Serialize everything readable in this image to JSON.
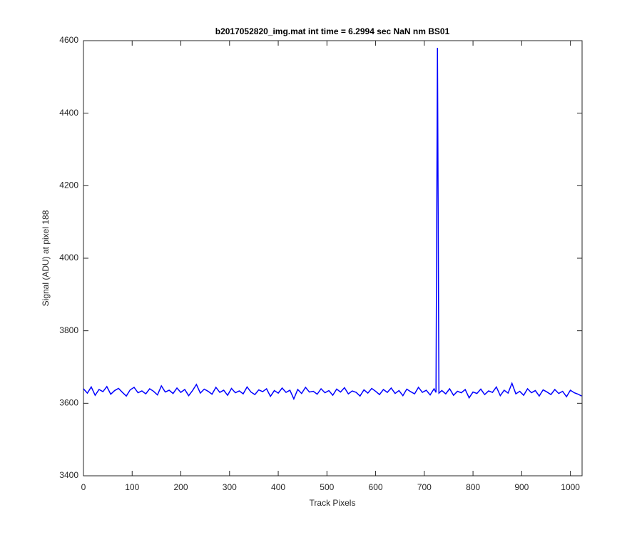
{
  "chart_data": {
    "type": "line",
    "title": "b2017052820_img.mat int time = 6.2994 sec  NaN nm BS01",
    "x_label": "Track Pixels",
    "y_label": "Signal (ADU) at pixel 188",
    "xlim": [
      0,
      1024
    ],
    "ylim": [
      3400,
      4600
    ],
    "xticks": [
      0,
      100,
      200,
      300,
      400,
      500,
      600,
      700,
      800,
      900,
      1000
    ],
    "yticks": [
      3400,
      3600,
      3800,
      4000,
      4200,
      4400,
      4600
    ],
    "grid": false,
    "x": [
      0,
      8,
      16,
      24,
      32,
      40,
      48,
      56,
      64,
      72,
      80,
      88,
      96,
      104,
      112,
      120,
      128,
      136,
      144,
      152,
      160,
      168,
      176,
      184,
      192,
      200,
      208,
      216,
      224,
      232,
      240,
      248,
      256,
      264,
      272,
      280,
      288,
      296,
      304,
      312,
      320,
      328,
      336,
      344,
      352,
      360,
      368,
      376,
      384,
      392,
      400,
      408,
      416,
      424,
      432,
      440,
      448,
      456,
      464,
      472,
      480,
      488,
      496,
      504,
      512,
      520,
      528,
      536,
      544,
      552,
      560,
      568,
      576,
      584,
      592,
      600,
      608,
      616,
      624,
      632,
      640,
      648,
      656,
      664,
      672,
      680,
      688,
      696,
      704,
      712,
      720,
      724,
      727,
      730,
      736,
      744,
      752,
      760,
      768,
      776,
      784,
      792,
      800,
      808,
      816,
      824,
      832,
      840,
      848,
      856,
      864,
      872,
      880,
      888,
      896,
      904,
      912,
      920,
      928,
      936,
      944,
      952,
      960,
      968,
      976,
      984,
      992,
      1000,
      1008,
      1016,
      1023
    ],
    "series": [
      {
        "color": "#0000ff",
        "values": [
          3640,
          3628,
          3645,
          3622,
          3638,
          3632,
          3646,
          3625,
          3635,
          3641,
          3630,
          3620,
          3637,
          3644,
          3629,
          3634,
          3626,
          3640,
          3633,
          3623,
          3648,
          3631,
          3636,
          3627,
          3642,
          3630,
          3638,
          3621,
          3635,
          3652,
          3628,
          3639,
          3633,
          3625,
          3644,
          3630,
          3636,
          3622,
          3641,
          3629,
          3634,
          3626,
          3645,
          3631,
          3624,
          3637,
          3632,
          3640,
          3619,
          3635,
          3628,
          3642,
          3630,
          3636,
          3612,
          3638,
          3627,
          3644,
          3631,
          3633,
          3625,
          3640,
          3629,
          3635,
          3622,
          3639,
          3631,
          3643,
          3626,
          3634,
          3630,
          3620,
          3637,
          3628,
          3641,
          3633,
          3624,
          3638,
          3630,
          3642,
          3627,
          3635,
          3621,
          3639,
          3632,
          3626,
          3644,
          3630,
          3636,
          3623,
          3640,
          3630,
          4580,
          3628,
          3635,
          3626,
          3640,
          3622,
          3633,
          3629,
          3638,
          3615,
          3631,
          3627,
          3639,
          3624,
          3634,
          3630,
          3645,
          3621,
          3636,
          3628,
          3655,
          3626,
          3633,
          3622,
          3640,
          3629,
          3635,
          3620,
          3637,
          3631,
          3624,
          3638,
          3627,
          3633,
          3618,
          3636,
          3629,
          3625,
          3620
        ]
      }
    ]
  }
}
